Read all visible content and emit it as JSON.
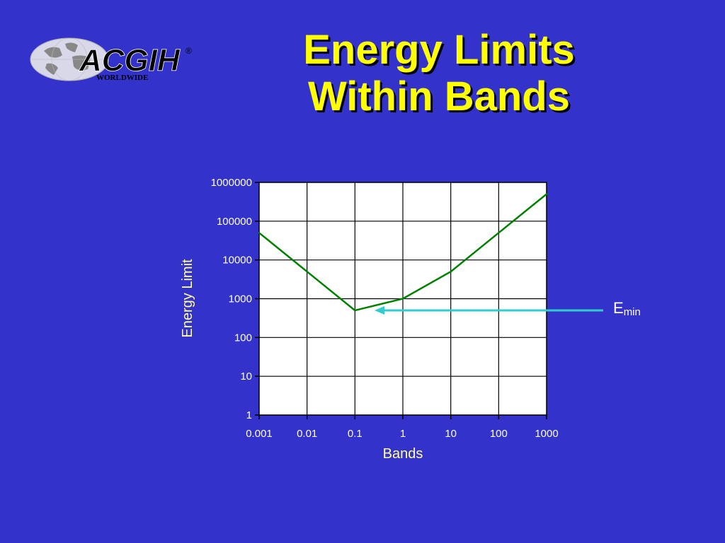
{
  "title": {
    "line1": "Energy Limits",
    "line2": "Within Bands"
  },
  "logo": {
    "text": "ACGIH",
    "sub_text": "WORLDWIDE",
    "registered_mark": "®"
  },
  "annotation": {
    "main": "E",
    "subscript": "min",
    "points_to": {
      "x": 0.1,
      "y": 500
    },
    "color": "#33cccc"
  },
  "colors": {
    "background": "#3333cc",
    "title": "#ffff00",
    "line": "#008000",
    "axis_title": "#ffff99"
  },
  "chart_data": {
    "type": "line",
    "xlabel": "Bands",
    "ylabel": "Energy Limit",
    "xscale": "log",
    "yscale": "log",
    "xlim": [
      0.001,
      1000
    ],
    "ylim": [
      1,
      1000000
    ],
    "x_ticks": [
      "0.001",
      "0.01",
      "0.1",
      "1",
      "10",
      "100",
      "1000"
    ],
    "y_ticks": [
      "1",
      "10",
      "100",
      "1000",
      "10000",
      "100000",
      "1000000"
    ],
    "grid": true,
    "series": [
      {
        "x": [
          0.001,
          0.01,
          0.1,
          1,
          10,
          100,
          1000
        ],
        "y": [
          50000,
          5000,
          500,
          1000,
          5000,
          50000,
          500000
        ]
      }
    ]
  }
}
